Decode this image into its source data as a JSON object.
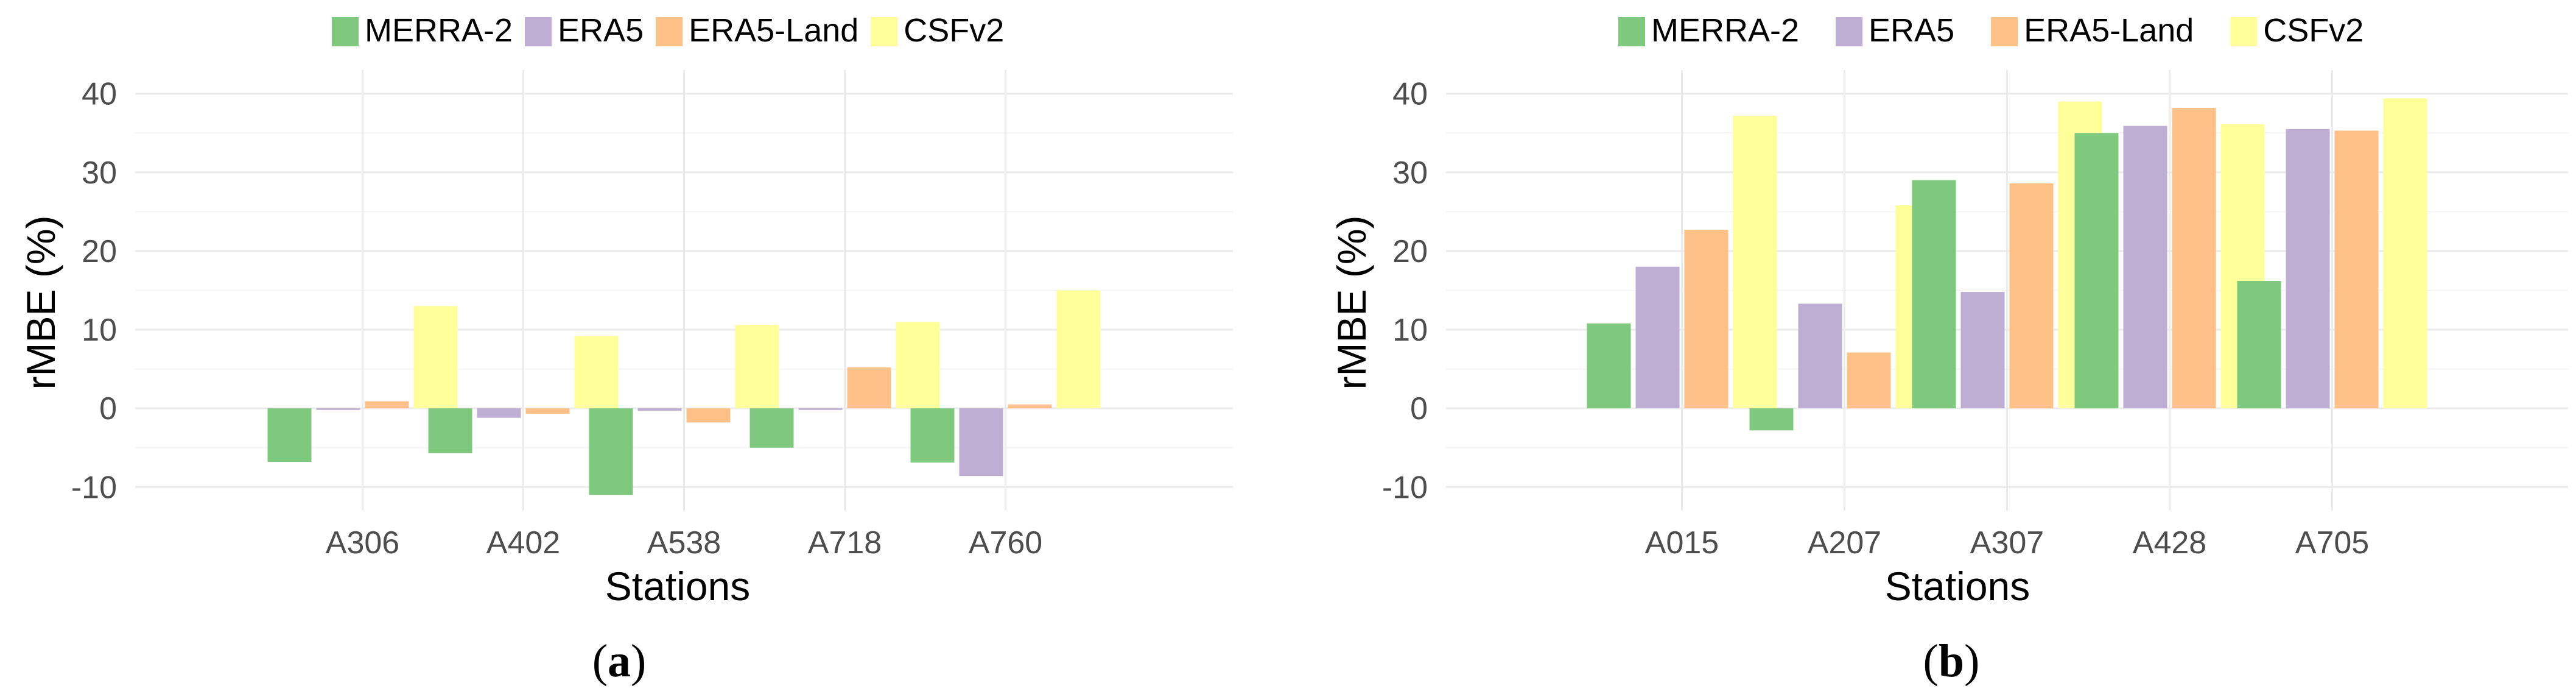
{
  "chart_data": [
    {
      "type": "bar",
      "panel_label": "a",
      "categories": [
        "A306",
        "A402",
        "A538",
        "A718",
        "A760"
      ],
      "series": [
        {
          "name": "MERRA-2",
          "color": "#7fc97f",
          "values": [
            -6.8,
            -5.7,
            -11.0,
            -5.0,
            -6.9
          ]
        },
        {
          "name": "ERA5",
          "color": "#beaed4",
          "values": [
            -0.2,
            -1.2,
            -0.3,
            -0.2,
            -8.6
          ]
        },
        {
          "name": "ERA5-Land",
          "color": "#fdc086",
          "values": [
            0.9,
            -0.7,
            -1.8,
            5.2,
            0.5
          ]
        },
        {
          "name": "CSFv2",
          "color": "#ffff99",
          "values": [
            13.0,
            9.2,
            10.6,
            11.0,
            15.0
          ]
        }
      ],
      "xlabel": "Stations",
      "ylabel": "rMBE (%)",
      "ylim": [
        -13,
        43
      ],
      "yticks": [
        -10,
        0,
        10,
        20,
        30,
        40
      ],
      "legend_position": "top"
    },
    {
      "type": "bar",
      "panel_label": "b",
      "categories": [
        "A015",
        "A207",
        "A307",
        "A428",
        "A705"
      ],
      "series": [
        {
          "name": "MERRA-2",
          "color": "#7fc97f",
          "values": [
            10.8,
            -2.8,
            29.0,
            35.0,
            16.2
          ]
        },
        {
          "name": "ERA5",
          "color": "#beaed4",
          "values": [
            18.0,
            13.3,
            14.8,
            35.9,
            35.5
          ]
        },
        {
          "name": "ERA5-Land",
          "color": "#fdc086",
          "values": [
            22.7,
            7.1,
            28.6,
            38.2,
            35.3
          ]
        },
        {
          "name": "CSFv2",
          "color": "#ffff99",
          "values": [
            37.2,
            25.8,
            39.0,
            36.1,
            39.4
          ]
        }
      ],
      "xlabel": "Stations",
      "ylabel": "rMBE (%)",
      "ylim": [
        -13,
        43
      ],
      "yticks": [
        -10,
        0,
        10,
        20,
        30,
        40
      ],
      "legend_position": "top"
    }
  ]
}
